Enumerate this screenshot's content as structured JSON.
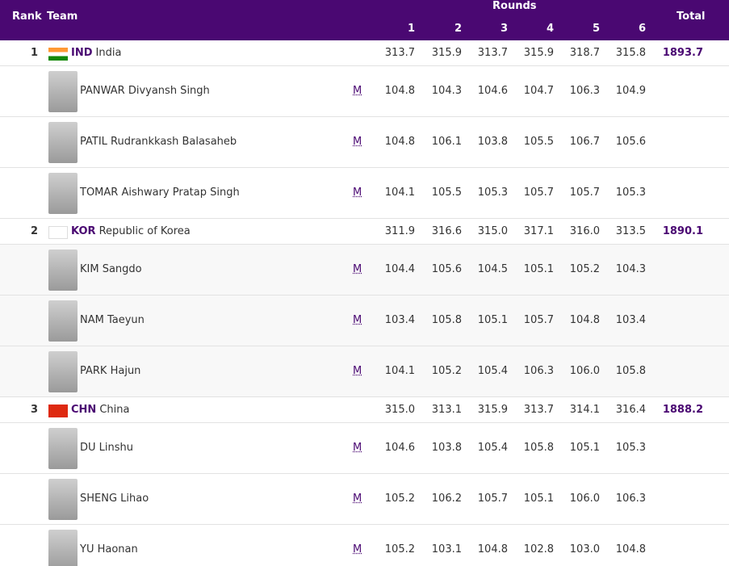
{
  "header": {
    "rank": "Rank",
    "team": "Team",
    "rounds": "Rounds",
    "round_numbers": [
      1,
      2,
      3,
      4,
      5,
      6
    ],
    "total": "Total"
  },
  "teams": [
    {
      "rank": 1,
      "code": "IND",
      "name": "India",
      "rounds": [
        "313.7",
        "315.9",
        "313.7",
        "315.9",
        "318.7",
        "315.8"
      ],
      "total": "1893.7",
      "athletes": [
        {
          "name": "PANWAR Divyansh Singh",
          "gender": "M",
          "scores": [
            "104.8",
            "104.3",
            "104.6",
            "104.7",
            "106.3",
            "104.9"
          ]
        },
        {
          "name": "PATIL Rudrankkash Balasaheb",
          "gender": "M",
          "scores": [
            "104.8",
            "106.1",
            "103.8",
            "105.5",
            "106.7",
            "105.6"
          ]
        },
        {
          "name": "TOMAR Aishwary Pratap Singh",
          "gender": "M",
          "scores": [
            "104.1",
            "105.5",
            "105.3",
            "105.7",
            "105.7",
            "105.3"
          ]
        }
      ]
    },
    {
      "rank": 2,
      "code": "KOR",
      "name": "Republic of Korea",
      "rounds": [
        "311.9",
        "316.6",
        "315.0",
        "317.1",
        "316.0",
        "313.5"
      ],
      "total": "1890.1",
      "athletes": [
        {
          "name": "KIM Sangdo",
          "gender": "M",
          "scores": [
            "104.4",
            "105.6",
            "104.5",
            "105.1",
            "105.2",
            "104.3"
          ]
        },
        {
          "name": "NAM Taeyun",
          "gender": "M",
          "scores": [
            "103.4",
            "105.8",
            "105.1",
            "105.7",
            "104.8",
            "103.4"
          ]
        },
        {
          "name": "PARK Hajun",
          "gender": "M",
          "scores": [
            "104.1",
            "105.2",
            "105.4",
            "106.3",
            "106.0",
            "105.8"
          ]
        }
      ]
    },
    {
      "rank": 3,
      "code": "CHN",
      "name": "China",
      "rounds": [
        "315.0",
        "313.1",
        "315.9",
        "313.7",
        "314.1",
        "316.4"
      ],
      "total": "1888.2",
      "athletes": [
        {
          "name": "DU Linshu",
          "gender": "M",
          "scores": [
            "104.6",
            "103.8",
            "105.4",
            "105.8",
            "105.1",
            "105.3"
          ]
        },
        {
          "name": "SHENG Lihao",
          "gender": "M",
          "scores": [
            "105.2",
            "106.2",
            "105.7",
            "105.1",
            "106.0",
            "106.3"
          ]
        },
        {
          "name": "YU Haonan",
          "gender": "M",
          "scores": [
            "105.2",
            "103.1",
            "104.8",
            "102.8",
            "103.0",
            "104.8"
          ]
        }
      ]
    }
  ]
}
